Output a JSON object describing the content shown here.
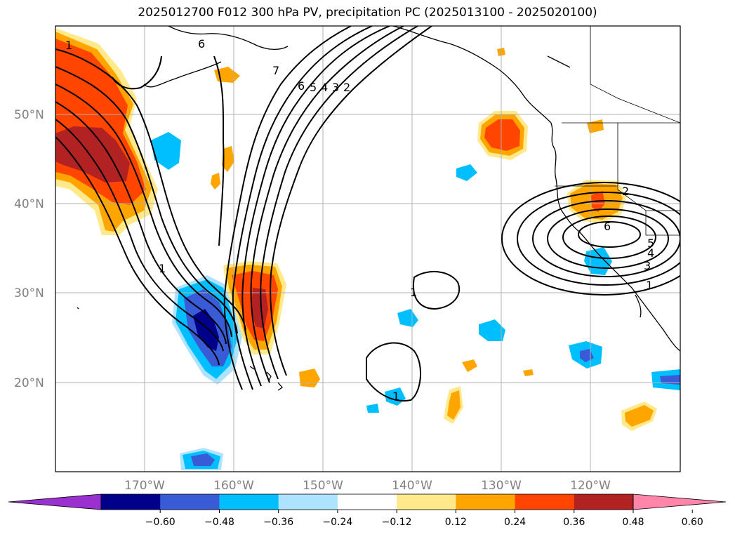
{
  "title": "2025012700 F012 300 hPa PV, precipitation PC (2025013100 - 2025020100)",
  "lat_labels": [
    "50°N",
    "40°N",
    "30°N",
    "20°N"
  ],
  "lon_labels": [
    "170°W",
    "160°W",
    "150°W",
    "140°W",
    "130°W",
    "120°W"
  ],
  "contour_labels": [
    "6",
    "7",
    "6",
    "5",
    "4",
    "3",
    "2",
    "1",
    "1",
    "2",
    "6",
    "5",
    "4",
    "3",
    "1",
    "1",
    "1"
  ],
  "colorbar": {
    "ticks": [
      "−0.60",
      "−0.48",
      "−0.36",
      "−0.24",
      "−0.12",
      "0.12",
      "0.24",
      "0.36",
      "0.48",
      "0.60"
    ],
    "colors": [
      "#9b30d0",
      "#00008b",
      "#3a5bd6",
      "#00bfff",
      "#ade3ff",
      "#ffffff",
      "#ffe98a",
      "#ffa500",
      "#ff4500",
      "#b22222",
      "#ff85aa"
    ],
    "extend": "both"
  },
  "map": {
    "projection": "equirectangular",
    "lon_range": [
      -180,
      -110
    ],
    "lat_range": [
      10,
      60
    ],
    "grid": true,
    "pv_contours": [
      1,
      2,
      3,
      4,
      5,
      6,
      7
    ]
  }
}
